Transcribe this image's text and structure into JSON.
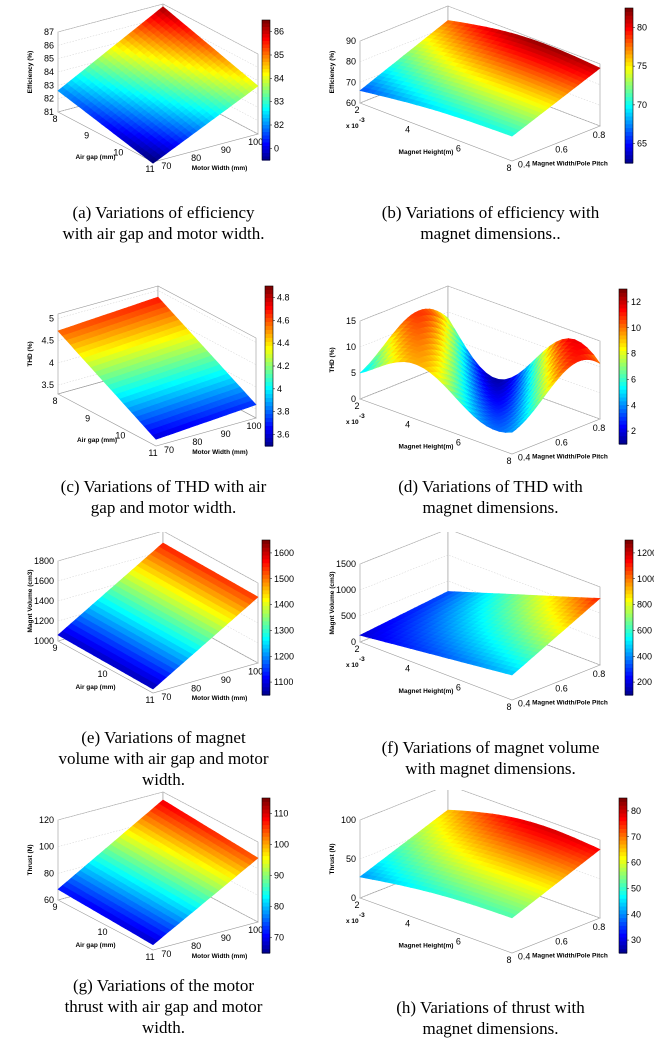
{
  "panels": [
    {
      "id": "a",
      "caption": "(a) Variations of efficiency\nwith air gap and motor width.",
      "chart_data": {
        "type": "surface",
        "zlabel": "Efficiency (%)",
        "xlabel": "Air gap (mm)",
        "ylabel": "Motor Width (mm)",
        "x_ticks": [
          "8",
          "9",
          "10",
          "11"
        ],
        "y_ticks": [
          "70",
          "80",
          "90",
          "100"
        ],
        "z_ticks": [
          "81",
          "82",
          "83",
          "84",
          "85",
          "86",
          "87"
        ],
        "zlim": [
          81,
          87
        ],
        "colorbar_ticks": [
          "86",
          "85",
          "84",
          "83",
          "82",
          "0"
        ],
        "corners": {
          "x8_y70": 82.6,
          "x8_y100": 86.8,
          "x11_y70": 80.9,
          "x11_y100": 84.6
        },
        "colormap": "jet"
      }
    },
    {
      "id": "b",
      "caption": "(b) Variations of efficiency with\nmagnet dimensions..",
      "chart_data": {
        "type": "surface",
        "zlabel": "Efficiency (%)",
        "xlabel": "Magnet Height(m)",
        "x_multiplier": "x 10",
        "x_exponent": "-3",
        "ylabel": "Magnet Width/Pole Pitch",
        "x_ticks": [
          "2",
          "4",
          "6",
          "8"
        ],
        "y_ticks": [
          "0.4",
          "0.6",
          "0.8"
        ],
        "z_ticks": [
          "60",
          "70",
          "80",
          "90"
        ],
        "zlim": [
          60,
          90
        ],
        "colorbar_ticks": [
          "80",
          "75",
          "70",
          "65"
        ],
        "corners": {
          "x2_y04": 66,
          "x2_y09": 83,
          "x8_y04": 72,
          "x8_y09": 88
        },
        "colormap": "jet"
      }
    },
    {
      "id": "c",
      "caption": "(c) Variations of THD with air\ngap and motor width.",
      "chart_data": {
        "type": "surface",
        "zlabel": "THD (%)",
        "xlabel": "Air gap (mm)",
        "ylabel": "Motor Width (mm)",
        "x_ticks": [
          "8",
          "9",
          "10",
          "11"
        ],
        "y_ticks": [
          "70",
          "80",
          "90",
          "100"
        ],
        "z_ticks": [
          "3.5",
          "4",
          "4.5",
          "5"
        ],
        "zlim": [
          3.3,
          5.1
        ],
        "colorbar_ticks": [
          "4.8",
          "4.6",
          "4.4",
          "4.2",
          "4",
          "3.8",
          "3.6"
        ],
        "corners": {
          "x8_y70": 4.72,
          "x8_y100": 4.85,
          "x11_y70": 3.45,
          "x11_y100": 3.6
        },
        "colormap": "jet"
      }
    },
    {
      "id": "d",
      "caption": "(d) Variations of THD with\nmagnet dimensions.",
      "chart_data": {
        "type": "surface",
        "zlabel": "THD (%)",
        "xlabel": "Magnet Height(m)",
        "x_multiplier": "x 10",
        "x_exponent": "-3",
        "ylabel": "Magnet Width/Pole Pitch",
        "x_ticks": [
          "2",
          "4",
          "6",
          "8"
        ],
        "y_ticks": [
          "0.4",
          "0.6",
          "0.8"
        ],
        "z_ticks": [
          "0",
          "5",
          "10",
          "15"
        ],
        "zlim": [
          0,
          15
        ],
        "colorbar_ticks": [
          "12",
          "10",
          "8",
          "6",
          "4",
          "2"
        ],
        "shape": "wave",
        "colormap": "jet"
      }
    },
    {
      "id": "e",
      "caption": "(e) Variations of magnet\nvolume with air gap and motor\nwidth.",
      "chart_data": {
        "type": "surface",
        "zlabel": "Magnt Volume (cm3)",
        "xlabel": "Air gap (mm)",
        "ylabel": "Motor Width (mm)",
        "x_ticks": [
          "9",
          "10",
          "11"
        ],
        "y_ticks": [
          "70",
          "80",
          "90",
          "100"
        ],
        "z_ticks": [
          "1000",
          "1200",
          "1400",
          "1600",
          "1800"
        ],
        "zlim": [
          1000,
          1800
        ],
        "colorbar_ticks": [
          "1600",
          "1500",
          "1400",
          "1300",
          "1200",
          "1100"
        ],
        "corners": {
          "x8_y70": 1060,
          "x8_y100": 1680,
          "x11_y70": 1040,
          "x11_y100": 1660
        },
        "colormap": "jet"
      }
    },
    {
      "id": "f",
      "caption": "(f) Variations of magnet volume\nwith magnet dimensions.",
      "chart_data": {
        "type": "surface",
        "zlabel": "Magnt Volume (cm3)",
        "xlabel": "Magnet Height(m)",
        "x_multiplier": "x 10",
        "x_exponent": "-3",
        "ylabel": "Magnet Width/Pole Pitch",
        "x_ticks": [
          "2",
          "4",
          "6",
          "8"
        ],
        "y_ticks": [
          "0.4",
          "0.6",
          "0.8"
        ],
        "z_ticks": [
          "0",
          "500",
          "1000",
          "1500"
        ],
        "zlim": [
          0,
          1500
        ],
        "colorbar_ticks": [
          "1200",
          "1000",
          "800",
          "600",
          "400",
          "200"
        ],
        "corners": {
          "x2_y04": 130,
          "x2_y09": 300,
          "x8_y04": 480,
          "x8_y09": 1280
        },
        "colormap": "jet"
      }
    },
    {
      "id": "g",
      "caption": "(g) Variations of the motor\nthrust with air gap and motor\nwidth.",
      "chart_data": {
        "type": "surface",
        "zlabel": "Thrust (N)",
        "xlabel": "Air gap (mm)",
        "ylabel": "Motor Width (mm)",
        "x_ticks": [
          "9",
          "10",
          "11"
        ],
        "y_ticks": [
          "70",
          "80",
          "90",
          "100"
        ],
        "z_ticks": [
          "60",
          "80",
          "100",
          "120"
        ],
        "zlim": [
          60,
          120
        ],
        "colorbar_ticks": [
          "110",
          "100",
          "90",
          "80",
          "70"
        ],
        "corners": {
          "x8_y70": 68,
          "x8_y100": 114,
          "x11_y70": 64,
          "x11_y100": 108
        },
        "colormap": "jet"
      }
    },
    {
      "id": "h",
      "caption": "(h) Variations of thrust with\nmagnet dimensions.",
      "chart_data": {
        "type": "surface",
        "zlabel": "Thrust (N)",
        "xlabel": "Magnet Height(m)",
        "x_multiplier": "x 10",
        "x_exponent": "-3",
        "ylabel": "Magnet Width/Pole Pitch",
        "x_ticks": [
          "2",
          "4",
          "6",
          "8"
        ],
        "y_ticks": [
          "0.4",
          "0.6",
          "0.8"
        ],
        "z_ticks": [
          "0",
          "50",
          "100"
        ],
        "zlim": [
          0,
          100
        ],
        "colorbar_ticks": [
          "80",
          "70",
          "60",
          "50",
          "40",
          "30"
        ],
        "corners": {
          "x2_y04": 27,
          "x2_y09": 68,
          "x8_y04": 45,
          "x8_y09": 88
        },
        "colormap": "jet"
      }
    }
  ]
}
